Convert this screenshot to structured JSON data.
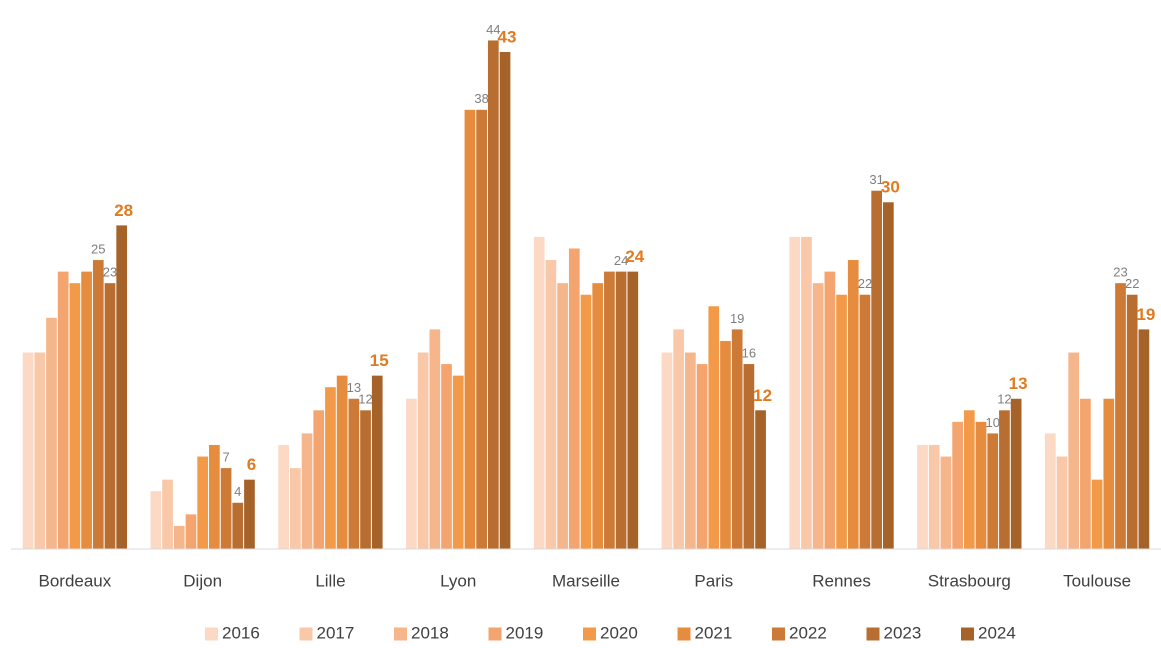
{
  "chart_data": {
    "type": "bar",
    "categories": [
      "Bordeaux",
      "Dijon",
      "Lille",
      "Lyon",
      "Marseille",
      "Paris",
      "Rennes",
      "Strasbourg",
      "Toulouse"
    ],
    "ylim": [
      0,
      47.5
    ],
    "series": [
      {
        "name": "2016",
        "color": "#fcd9c4",
        "values": [
          17,
          5,
          9,
          13,
          27,
          17,
          27,
          9,
          10
        ]
      },
      {
        "name": "2017",
        "color": "#f9c8a8",
        "values": [
          17,
          6,
          7,
          17,
          25,
          19,
          27,
          9,
          8
        ]
      },
      {
        "name": "2018",
        "color": "#f6b68c",
        "values": [
          20,
          2,
          10,
          19,
          23,
          17,
          23,
          8,
          17
        ]
      },
      {
        "name": "2019",
        "color": "#f4a46f",
        "values": [
          24,
          3,
          12,
          16,
          26,
          16,
          24,
          11,
          13
        ]
      },
      {
        "name": "2020",
        "color": "#f39a48",
        "values": [
          23,
          8,
          14,
          15,
          22,
          21,
          22,
          12,
          6
        ]
      },
      {
        "name": "2021",
        "color": "#e68c3e",
        "values": [
          24,
          9,
          15,
          38,
          23,
          18,
          25,
          11,
          13
        ]
      },
      {
        "name": "2022",
        "color": "#cc7a36",
        "values": [
          25,
          7,
          13,
          38,
          24,
          19,
          22,
          10,
          23
        ],
        "value_labels": [
          "25",
          "7",
          "13",
          "38",
          null,
          "19",
          "22",
          "10",
          "23"
        ]
      },
      {
        "name": "2023",
        "color": "#b86e30",
        "values": [
          23,
          4,
          12,
          44,
          24,
          16,
          31,
          12,
          22
        ],
        "value_labels": [
          "23",
          "4",
          "12",
          "44",
          "24",
          "16",
          "31",
          "12",
          "22"
        ]
      },
      {
        "name": "2024",
        "color": "#a5632a",
        "values": [
          28,
          6,
          15,
          43,
          24,
          12,
          30,
          13,
          19
        ],
        "value_labels": [
          "28",
          "6",
          "15",
          "43",
          "24",
          "12",
          "30",
          "13",
          "19"
        ]
      }
    ]
  }
}
